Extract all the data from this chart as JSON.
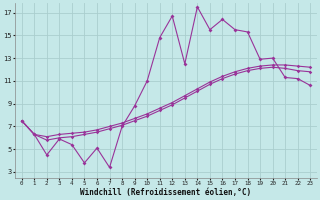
{
  "xlabel": "Windchill (Refroidissement éolien,°C)",
  "bg_color": "#c5e8e8",
  "grid_color": "#aacece",
  "line_color": "#993399",
  "xlim_min": -0.5,
  "xlim_max": 23.5,
  "ylim_min": 2.5,
  "ylim_max": 17.8,
  "xticks": [
    0,
    1,
    2,
    3,
    4,
    5,
    6,
    7,
    8,
    9,
    10,
    11,
    12,
    13,
    14,
    15,
    16,
    17,
    18,
    19,
    20,
    21,
    22,
    23
  ],
  "yticks": [
    3,
    5,
    7,
    9,
    11,
    13,
    15,
    17
  ],
  "line1_x": [
    0,
    1,
    2,
    3,
    4,
    5,
    6,
    7,
    8,
    9,
    10,
    11,
    12,
    13,
    14,
    15,
    16,
    17,
    18,
    19,
    20,
    21,
    22,
    23
  ],
  "line1_y": [
    7.5,
    6.3,
    4.5,
    5.9,
    5.4,
    3.8,
    5.1,
    3.4,
    7.0,
    8.8,
    11.0,
    14.8,
    16.7,
    12.5,
    17.5,
    15.5,
    16.4,
    15.5,
    15.3,
    12.9,
    13.0,
    11.3,
    11.2,
    10.6
  ],
  "line2_x": [
    0,
    1,
    2,
    3,
    4,
    5,
    6,
    7,
    8,
    9,
    10,
    11,
    12,
    13,
    14,
    15,
    16,
    17,
    18,
    19,
    20,
    21,
    22,
    23
  ],
  "line2_y": [
    7.5,
    6.3,
    6.1,
    6.3,
    6.4,
    6.5,
    6.7,
    7.0,
    7.3,
    7.7,
    8.1,
    8.6,
    9.1,
    9.7,
    10.3,
    10.9,
    11.4,
    11.8,
    12.1,
    12.3,
    12.4,
    12.4,
    12.3,
    12.2
  ],
  "line3_x": [
    0,
    1,
    2,
    3,
    4,
    5,
    6,
    7,
    8,
    9,
    10,
    11,
    12,
    13,
    14,
    15,
    16,
    17,
    18,
    19,
    20,
    21,
    22,
    23
  ],
  "line3_y": [
    7.5,
    6.3,
    5.8,
    6.0,
    6.1,
    6.3,
    6.5,
    6.8,
    7.1,
    7.5,
    7.9,
    8.4,
    8.9,
    9.5,
    10.1,
    10.7,
    11.2,
    11.6,
    11.9,
    12.1,
    12.2,
    12.1,
    11.9,
    11.8
  ]
}
